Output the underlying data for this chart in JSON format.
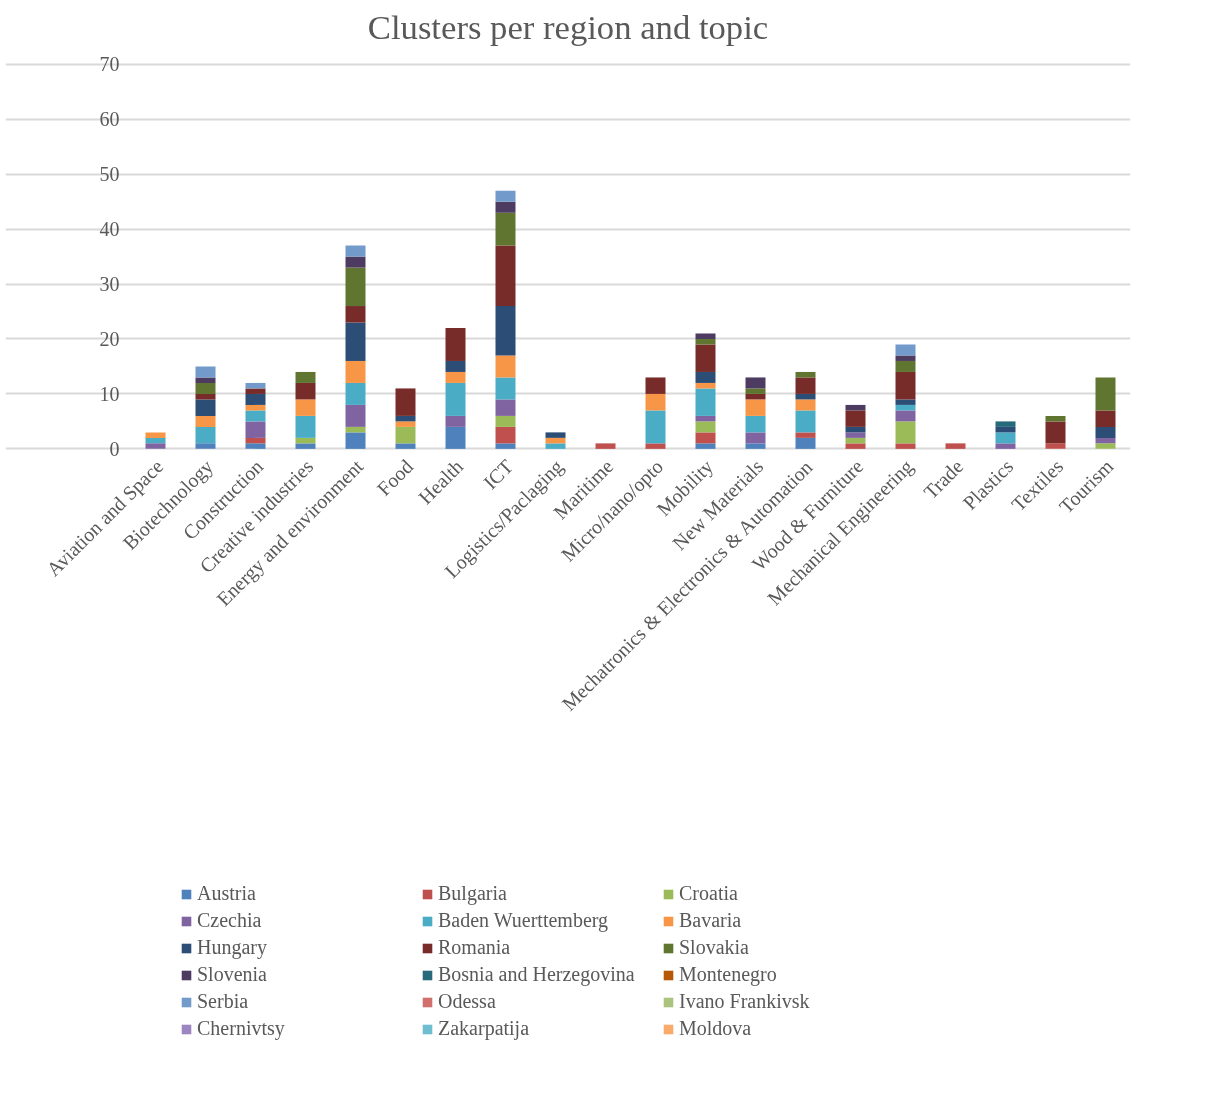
{
  "chart_data": {
    "type": "bar",
    "stacked": true,
    "title": "Clusters per region and topic",
    "categories": [
      "Aviation and Space",
      "Biotechnology",
      "Construction",
      "Creative industries",
      "Energy and environment",
      "Food",
      "Health",
      "ICT",
      "Logistics/Paclaging",
      "Maritime",
      "Micro/nano/opto",
      "Mobility",
      "New Materials",
      "Mechatronics & Electronics & Automation",
      "Wood & Furniture",
      "Mechanical Engineering",
      "Trade",
      "Plastics",
      "Textiles",
      "Tourism"
    ],
    "ylim": [
      0,
      70
    ],
    "yticks": [
      0,
      10,
      20,
      30,
      40,
      50,
      60,
      70
    ],
    "grid": "y",
    "legend": "bottom",
    "series": [
      {
        "name": "Austria",
        "color": "#4f81bd",
        "values": [
          0,
          1,
          1,
          1,
          3,
          1,
          4,
          1,
          0,
          0,
          0,
          1,
          1,
          2,
          0,
          0,
          0,
          0,
          0,
          0
        ]
      },
      {
        "name": "Bulgaria",
        "color": "#c0504d",
        "values": [
          0,
          0,
          1,
          0,
          0,
          0,
          0,
          3,
          0,
          1,
          1,
          2,
          0,
          1,
          1,
          1,
          1,
          0,
          1,
          0
        ]
      },
      {
        "name": "Croatia",
        "color": "#9bbb59",
        "values": [
          0,
          0,
          0,
          1,
          1,
          3,
          0,
          2,
          0,
          0,
          0,
          2,
          0,
          0,
          1,
          4,
          0,
          0,
          0,
          1
        ]
      },
      {
        "name": "Czechia",
        "color": "#8064a2",
        "values": [
          1,
          0,
          3,
          0,
          4,
          0,
          2,
          3,
          0,
          0,
          0,
          1,
          2,
          0,
          1,
          2,
          0,
          1,
          0,
          1
        ]
      },
      {
        "name": "Baden Wuerttemberg",
        "color": "#4bacc6",
        "values": [
          1,
          3,
          2,
          4,
          4,
          0,
          6,
          4,
          1,
          0,
          6,
          5,
          3,
          4,
          0,
          1,
          0,
          2,
          0,
          0
        ]
      },
      {
        "name": "Bavaria",
        "color": "#f79646",
        "values": [
          1,
          2,
          1,
          3,
          4,
          1,
          2,
          4,
          1,
          0,
          3,
          1,
          3,
          2,
          0,
          0,
          0,
          0,
          0,
          0
        ]
      },
      {
        "name": "Hungary",
        "color": "#2c4d75",
        "values": [
          0,
          3,
          2,
          0,
          7,
          1,
          2,
          9,
          1,
          0,
          0,
          2,
          0,
          1,
          1,
          1,
          0,
          1,
          0,
          2
        ]
      },
      {
        "name": "Romania",
        "color": "#772c2a",
        "values": [
          0,
          1,
          1,
          3,
          3,
          5,
          6,
          11,
          0,
          0,
          3,
          5,
          1,
          3,
          3,
          5,
          0,
          0,
          4,
          3
        ]
      },
      {
        "name": "Slovakia",
        "color": "#5f7530",
        "values": [
          0,
          2,
          0,
          2,
          7,
          0,
          0,
          6,
          0,
          0,
          0,
          1,
          1,
          1,
          0,
          2,
          0,
          0,
          1,
          6
        ]
      },
      {
        "name": "Slovenia",
        "color": "#4d3b62",
        "values": [
          0,
          1,
          0,
          0,
          2,
          0,
          0,
          2,
          0,
          0,
          0,
          1,
          2,
          0,
          1,
          1,
          0,
          0,
          0,
          0
        ]
      },
      {
        "name": "Bosnia and Herzegovina",
        "color": "#276a7c",
        "values": [
          0,
          0,
          0,
          0,
          0,
          0,
          0,
          0,
          0,
          0,
          0,
          0,
          0,
          0,
          0,
          0,
          0,
          1,
          0,
          0
        ]
      },
      {
        "name": "Montenegro",
        "color": "#b65708",
        "values": [
          0,
          0,
          0,
          0,
          0,
          0,
          0,
          0,
          0,
          0,
          0,
          0,
          0,
          0,
          0,
          0,
          0,
          0,
          0,
          0
        ]
      },
      {
        "name": "Serbia",
        "color": "#729aca",
        "values": [
          0,
          2,
          1,
          0,
          2,
          0,
          0,
          2,
          0,
          0,
          0,
          0,
          0,
          0,
          0,
          2,
          0,
          0,
          0,
          0
        ]
      },
      {
        "name": "Odessa",
        "color": "#d06f6c",
        "values": [
          0,
          0,
          0,
          0,
          0,
          0,
          0,
          0,
          0,
          0,
          0,
          0,
          0,
          0,
          0,
          0,
          0,
          0,
          0,
          0
        ]
      },
      {
        "name": "Ivano Frankivsk",
        "color": "#aac47f",
        "values": [
          0,
          0,
          0,
          0,
          0,
          0,
          0,
          0,
          0,
          0,
          0,
          0,
          0,
          0,
          0,
          0,
          0,
          0,
          0,
          0
        ]
      },
      {
        "name": "Chernivtsy",
        "color": "#9c85c0",
        "values": [
          0,
          0,
          0,
          0,
          0,
          0,
          0,
          0,
          0,
          0,
          0,
          0,
          0,
          0,
          0,
          0,
          0,
          0,
          0,
          0
        ]
      },
      {
        "name": "Zakarpatija",
        "color": "#6fbdd1",
        "values": [
          0,
          0,
          0,
          0,
          0,
          0,
          0,
          0,
          0,
          0,
          0,
          0,
          0,
          0,
          0,
          0,
          0,
          0,
          0,
          0
        ]
      },
      {
        "name": "Moldova",
        "color": "#f9ab6b",
        "values": [
          0,
          0,
          0,
          0,
          0,
          0,
          0,
          0,
          0,
          0,
          0,
          0,
          0,
          0,
          0,
          0,
          0,
          0,
          0,
          0
        ]
      }
    ]
  }
}
